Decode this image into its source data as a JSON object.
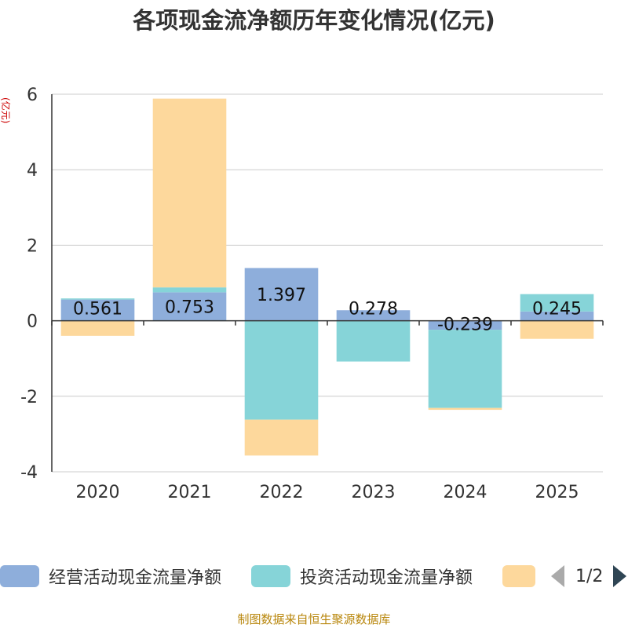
{
  "chart_data": {
    "type": "bar",
    "stacked": true,
    "title": "各项现金流净额历年变化情况(亿元)",
    "ylabel": "(亿元)",
    "ylim": [
      -4,
      6
    ],
    "yticks": [
      -4,
      -2,
      0,
      2,
      4,
      6
    ],
    "categories": [
      "2020",
      "2021",
      "2022",
      "2023",
      "2024",
      "2025"
    ],
    "series": [
      {
        "name": "经营活动现金流量净额",
        "color": "#8eaedb",
        "values": [
          0.561,
          0.753,
          1.397,
          0.278,
          -0.239,
          0.245
        ]
      },
      {
        "name": "投资活动现金流量净额",
        "color": "#86d4d8",
        "values": [
          0.03,
          0.13,
          -2.62,
          -1.08,
          -2.07,
          0.46
        ]
      },
      {
        "name": "",
        "color": "#fdd89c",
        "values": [
          -0.4,
          5.0,
          -0.95,
          0.0,
          -0.05,
          -0.48
        ]
      }
    ],
    "data_labels": [
      "0.561",
      "0.753",
      "1.397",
      "0.278",
      "-0.239",
      "0.245"
    ],
    "grid": true,
    "legend_position": "bottom"
  },
  "legend": {
    "page": "1/2"
  },
  "source": "制图数据来自恒生聚源数据库"
}
